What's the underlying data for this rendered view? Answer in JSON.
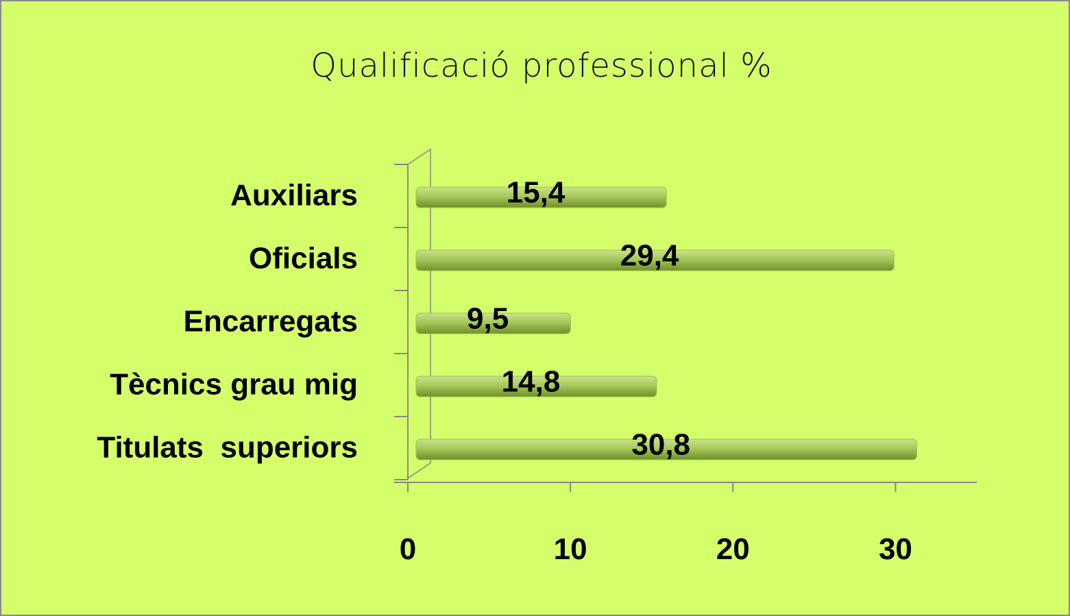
{
  "chart_data": {
    "type": "bar",
    "orientation": "horizontal",
    "title": "Qualificació professional  %",
    "categories": [
      "Auxiliars",
      "Oficials",
      "Encarregats",
      "Tècnics grau mig",
      "Titulats  superiors"
    ],
    "values": [
      15.4,
      29.4,
      9.5,
      14.8,
      30.8
    ],
    "value_labels": [
      "15,4",
      "29,4",
      "9,5",
      "14,8",
      "30,8"
    ],
    "color": "#9cc14a",
    "xlim": [
      0,
      35
    ],
    "xticks": [
      0,
      10,
      20,
      30
    ]
  }
}
